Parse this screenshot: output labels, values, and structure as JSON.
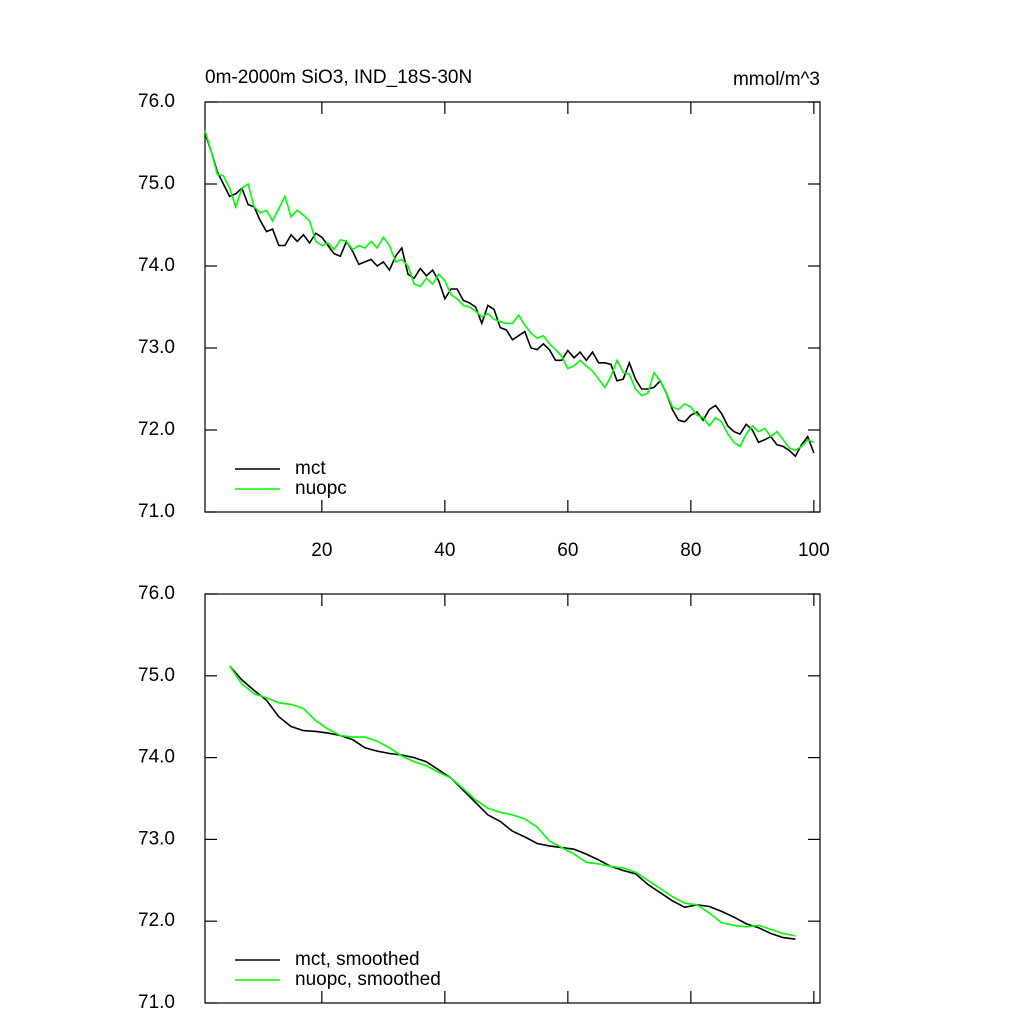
{
  "chart_data": [
    {
      "type": "line",
      "title": "0m-2000m SiO3, IND_18S-30N",
      "units": "mmol/m^3",
      "x": [
        1,
        2,
        3,
        4,
        5,
        6,
        7,
        8,
        9,
        10,
        11,
        12,
        13,
        14,
        15,
        16,
        17,
        18,
        19,
        20,
        21,
        22,
        23,
        24,
        25,
        26,
        27,
        28,
        29,
        30,
        31,
        32,
        33,
        34,
        35,
        36,
        37,
        38,
        39,
        40,
        41,
        42,
        43,
        44,
        45,
        46,
        47,
        48,
        49,
        50,
        51,
        52,
        53,
        54,
        55,
        56,
        57,
        58,
        59,
        60,
        61,
        62,
        63,
        64,
        65,
        66,
        67,
        68,
        69,
        70,
        71,
        72,
        73,
        74,
        75,
        76,
        77,
        78,
        79,
        80,
        81,
        82,
        83,
        84,
        85,
        86,
        87,
        88,
        89,
        90,
        91,
        92,
        93,
        94,
        95,
        96,
        97,
        98,
        99,
        100
      ],
      "series": [
        {
          "name": "mct",
          "color": "#000000",
          "values": [
            75.62,
            75.4,
            75.15,
            75.0,
            74.85,
            74.88,
            74.95,
            74.75,
            74.72,
            74.55,
            74.42,
            74.45,
            74.25,
            74.25,
            74.38,
            74.3,
            74.38,
            74.28,
            74.4,
            74.35,
            74.25,
            74.15,
            74.12,
            74.3,
            74.18,
            74.02,
            74.05,
            74.08,
            74.0,
            74.05,
            73.95,
            74.12,
            74.22,
            73.9,
            73.85,
            73.97,
            73.88,
            73.95,
            73.82,
            73.6,
            73.72,
            73.72,
            73.58,
            73.55,
            73.5,
            73.3,
            73.52,
            73.47,
            73.25,
            73.22,
            73.1,
            73.15,
            73.2,
            73.0,
            72.98,
            73.05,
            72.98,
            72.85,
            72.85,
            72.97,
            72.88,
            72.95,
            72.85,
            72.95,
            72.82,
            72.82,
            72.8,
            72.6,
            72.62,
            72.82,
            72.62,
            72.5,
            72.5,
            72.52,
            72.6,
            72.45,
            72.25,
            72.12,
            72.1,
            72.18,
            72.22,
            72.12,
            72.25,
            72.3,
            72.2,
            72.05,
            71.98,
            71.95,
            72.07,
            72.0,
            71.85,
            71.88,
            71.92,
            71.82,
            71.8,
            71.75,
            71.68,
            71.82,
            71.92,
            71.72
          ]
        },
        {
          "name": "nuopc",
          "color": "#00ff00",
          "values": [
            75.65,
            75.4,
            75.12,
            75.1,
            74.95,
            74.72,
            74.95,
            75.0,
            74.72,
            74.65,
            74.68,
            74.55,
            74.7,
            74.85,
            74.6,
            74.68,
            74.62,
            74.55,
            74.3,
            74.25,
            74.28,
            74.2,
            74.32,
            74.3,
            74.2,
            74.25,
            74.22,
            74.3,
            74.22,
            74.35,
            74.25,
            74.05,
            74.08,
            74.0,
            73.78,
            73.75,
            73.85,
            73.78,
            73.9,
            73.82,
            73.65,
            73.6,
            73.52,
            73.5,
            73.45,
            73.38,
            73.42,
            73.35,
            73.32,
            73.3,
            73.3,
            73.4,
            73.28,
            73.18,
            73.12,
            73.15,
            73.05,
            72.98,
            72.9,
            72.75,
            72.78,
            72.85,
            72.78,
            72.72,
            72.62,
            72.52,
            72.65,
            72.85,
            72.7,
            72.68,
            72.5,
            72.42,
            72.45,
            72.7,
            72.6,
            72.45,
            72.28,
            72.25,
            72.32,
            72.28,
            72.18,
            72.15,
            72.05,
            72.15,
            72.1,
            71.95,
            71.85,
            71.8,
            71.95,
            72.05,
            71.98,
            72.02,
            71.92,
            71.98,
            71.88,
            71.78,
            71.75,
            71.8,
            71.88,
            71.85
          ]
        }
      ],
      "xlim": [
        1,
        101
      ],
      "xticks": [
        20,
        40,
        60,
        80,
        100
      ],
      "ylim": [
        71,
        76
      ],
      "yticks": [
        {
          "value": 71,
          "label": "71.0"
        },
        {
          "value": 72,
          "label": "72.0"
        },
        {
          "value": 73,
          "label": "73.0"
        },
        {
          "value": 74,
          "label": "74.0"
        },
        {
          "value": 75,
          "label": "75.0"
        },
        {
          "value": 76,
          "label": "76.0"
        }
      ],
      "legend": "lower left"
    },
    {
      "type": "line",
      "x": [
        5,
        7,
        9,
        11,
        13,
        15,
        17,
        19,
        21,
        23,
        25,
        27,
        29,
        31,
        33,
        35,
        37,
        39,
        41,
        43,
        45,
        47,
        49,
        51,
        53,
        55,
        57,
        59,
        61,
        63,
        65,
        67,
        69,
        71,
        73,
        75,
        77,
        79,
        81,
        83,
        85,
        87,
        89,
        91,
        93,
        95,
        97
      ],
      "series": [
        {
          "name": "mct, smoothed",
          "color": "#000000",
          "values": [
            75.12,
            74.95,
            74.82,
            74.7,
            74.5,
            74.38,
            74.33,
            74.32,
            74.3,
            74.27,
            74.22,
            74.12,
            74.08,
            74.05,
            74.03,
            74.0,
            73.95,
            73.85,
            73.75,
            73.6,
            73.45,
            73.3,
            73.22,
            73.1,
            73.03,
            72.95,
            72.92,
            72.9,
            72.88,
            72.82,
            72.75,
            72.67,
            72.62,
            72.58,
            72.45,
            72.35,
            72.25,
            72.17,
            72.2,
            72.18,
            72.12,
            72.05,
            71.97,
            71.92,
            71.85,
            71.8,
            71.78
          ]
        },
        {
          "name": "nuopc, smoothed",
          "color": "#00ff00",
          "values": [
            75.12,
            74.9,
            74.78,
            74.73,
            74.67,
            74.65,
            74.6,
            74.45,
            74.35,
            74.27,
            74.25,
            74.25,
            74.2,
            74.12,
            74.02,
            73.95,
            73.9,
            73.82,
            73.75,
            73.62,
            73.48,
            73.38,
            73.33,
            73.3,
            73.25,
            73.15,
            72.98,
            72.9,
            72.82,
            72.72,
            72.7,
            72.67,
            72.65,
            72.6,
            72.5,
            72.4,
            72.3,
            72.22,
            72.2,
            72.1,
            71.98,
            71.95,
            71.93,
            71.95,
            71.9,
            71.85,
            71.82
          ]
        }
      ],
      "xlim": [
        1,
        101
      ],
      "xticks": [
        20,
        40,
        60,
        80,
        100
      ],
      "ylim": [
        71,
        76
      ],
      "yticks": [
        {
          "value": 71,
          "label": "71.0"
        },
        {
          "value": 72,
          "label": "72.0"
        },
        {
          "value": 73,
          "label": "73.0"
        },
        {
          "value": 74,
          "label": "74.0"
        },
        {
          "value": 75,
          "label": "75.0"
        },
        {
          "value": 76,
          "label": "76.0"
        }
      ],
      "legend": "lower left"
    }
  ]
}
